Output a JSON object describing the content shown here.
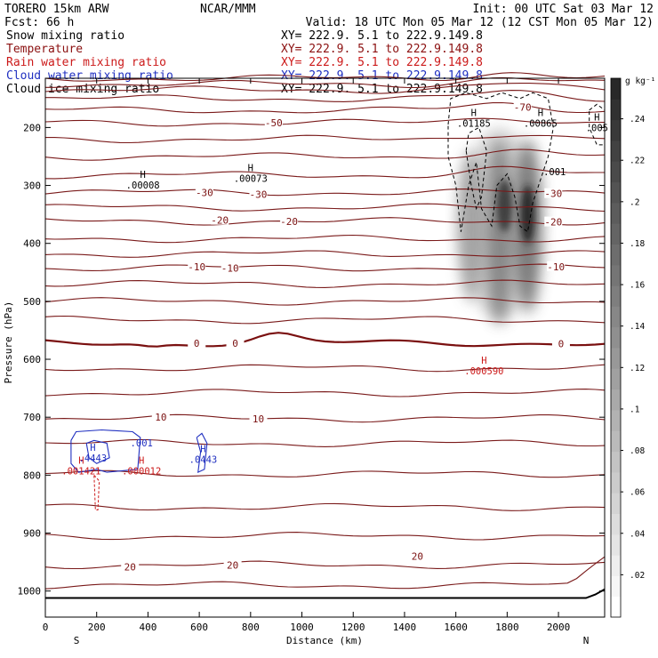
{
  "header": {
    "model": "TORERO  15km ARW",
    "org": "NCAR/MMM",
    "init": "Init: 00 UTC Sat 03 Mar 12",
    "fcst": "Fcst:   66 h",
    "valid": "Valid: 18 UTC Mon 05 Mar 12 (12 CST Mon 05 Mar 12)"
  },
  "fields": [
    {
      "name": "Snow mixing ratio",
      "xy": "XY= 222.9.  5.1 to 222.9.149.8",
      "color": "#000000"
    },
    {
      "name": "Temperature",
      "xy": "XY= 222.9.  5.1 to 222.9.149.8",
      "color": "#8b1010"
    },
    {
      "name": "Rain water mixing ratio",
      "xy": "XY= 222.9.  5.1 to 222.9.149.8",
      "color": "#cc1a1a"
    },
    {
      "name": "Cloud water mixing ratio",
      "xy": "XY= 222.9.  5.1 to 222.9.149.8",
      "color": "#1f2fc0"
    },
    {
      "name": "Cloud ice mixing ratio",
      "xy": "XY= 222.9.  5.1 to 222.9.149.8",
      "color": "#000000"
    }
  ],
  "chart_data": {
    "type": "cross-section contour",
    "xlabel": "Distance (km)",
    "ylabel": "Pressure (hPa)",
    "xlim": [
      0,
      2180
    ],
    "ylim": [
      1045,
      115
    ],
    "x_ticks": [
      0,
      200,
      400,
      600,
      800,
      1000,
      1200,
      1400,
      1600,
      1800,
      2000
    ],
    "y_ticks": [
      200,
      300,
      400,
      500,
      600,
      700,
      800,
      900,
      1000
    ],
    "end_labels": {
      "left": "S",
      "right": "N"
    },
    "colorbar": {
      "units": "g kg⁻¹",
      "ticks": [
        ".02",
        ".04",
        ".06",
        ".08",
        ".1",
        ".12",
        ".14",
        ".16",
        ".18",
        ".2",
        ".22",
        ".24"
      ]
    },
    "temperature_isotherm_levels": [
      -70,
      -60,
      -50,
      -40,
      -30,
      -20,
      -10,
      0,
      10,
      20
    ],
    "temperature_labels": [
      {
        "text": "-70",
        "x": 1860,
        "p": 165
      },
      {
        "text": "-50",
        "x": 890,
        "p": 192
      },
      {
        "text": "-30",
        "x": 620,
        "p": 312
      },
      {
        "text": "-30",
        "x": 830,
        "p": 315
      },
      {
        "text": "-30",
        "x": 1980,
        "p": 314
      },
      {
        "text": "-20",
        "x": 680,
        "p": 360
      },
      {
        "text": "-20",
        "x": 950,
        "p": 362
      },
      {
        "text": "-20",
        "x": 1980,
        "p": 363
      },
      {
        "text": "-10",
        "x": 590,
        "p": 440
      },
      {
        "text": "-10",
        "x": 720,
        "p": 443
      },
      {
        "text": "-10",
        "x": 1990,
        "p": 440
      },
      {
        "text": "0",
        "x": 590,
        "p": 572
      },
      {
        "text": "0",
        "x": 740,
        "p": 572
      },
      {
        "text": "0",
        "x": 2010,
        "p": 573
      },
      {
        "text": "10",
        "x": 450,
        "p": 700
      },
      {
        "text": "10",
        "x": 830,
        "p": 703
      },
      {
        "text": "20",
        "x": 330,
        "p": 958
      },
      {
        "text": "20",
        "x": 730,
        "p": 955
      },
      {
        "text": "20",
        "x": 1450,
        "p": 940
      }
    ],
    "extrema": [
      {
        "field": "Snow mixing ratio",
        "kind": "H",
        "value": ".00008",
        "x": 380,
        "p": 287
      },
      {
        "field": "Snow mixing ratio",
        "kind": "H",
        "value": ".00073",
        "x": 800,
        "p": 275
      },
      {
        "field": "Snow mixing ratio",
        "kind": "H",
        "value": ".01185",
        "x": 1670,
        "p": 180
      },
      {
        "field": "Snow mixing ratio",
        "kind": "H",
        "value": ".00865",
        "x": 1930,
        "p": 180
      },
      {
        "field": "Snow mixing ratio",
        "kind": "H",
        "value": ".005",
        "x": 2150,
        "p": 188
      },
      {
        "field": "Snow mixing ratio",
        "kind": "contour",
        "value": ".001",
        "x": 1985,
        "p": 282
      },
      {
        "field": "Rain water mixing ratio",
        "kind": "H",
        "value": ".000590",
        "x": 1710,
        "p": 608
      },
      {
        "field": "Rain water mixing ratio",
        "kind": "H",
        "value": ".001421",
        "x": 140,
        "p": 780
      },
      {
        "field": "Rain water mixing ratio",
        "kind": "H",
        "value": ".000012",
        "x": 375,
        "p": 780
      },
      {
        "field": "Cloud water mixing ratio",
        "kind": "H",
        "value": ".4443",
        "x": 185,
        "p": 758
      },
      {
        "field": "Cloud water mixing ratio",
        "kind": "contour",
        "value": ".001",
        "x": 375,
        "p": 750
      },
      {
        "field": "Cloud water mixing ratio",
        "kind": "H",
        "value": ".0443",
        "x": 615,
        "p": 760
      }
    ]
  }
}
